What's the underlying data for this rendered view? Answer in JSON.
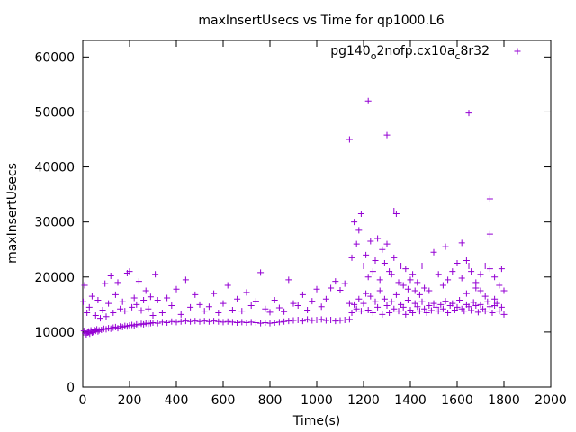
{
  "chart_data": {
    "type": "scatter",
    "title": "maxInsertUsecs vs Time for qp1000.L6",
    "xlabel": "Time(s)",
    "ylabel": "maxInsertUsecs",
    "xlim": [
      0,
      2000
    ],
    "ylim": [
      0,
      63000
    ],
    "x_ticks": [
      0,
      200,
      400,
      600,
      800,
      1000,
      1200,
      1400,
      1600,
      1800,
      2000
    ],
    "y_ticks": [
      0,
      10000,
      20000,
      30000,
      40000,
      50000,
      60000
    ],
    "x_tick_labels": [
      "0",
      "200",
      "400",
      "600",
      "800",
      "1000",
      "1200",
      "1400",
      "1600",
      "1800",
      "2000"
    ],
    "y_tick_labels": [
      "0",
      "10000",
      "20000",
      "30000",
      "40000",
      "50000",
      "60000"
    ],
    "grid": false,
    "legend_position": "top-right",
    "marker": "plus",
    "color": "#9400d3",
    "series": [
      {
        "name_parts": [
          "pg140",
          "o",
          "2nofp.cx10a",
          "c",
          "8r32"
        ],
        "points": [
          [
            5,
            10200
          ],
          [
            10,
            9800
          ],
          [
            15,
            9500
          ],
          [
            20,
            9900
          ],
          [
            25,
            10100
          ],
          [
            30,
            9700
          ],
          [
            35,
            10300
          ],
          [
            40,
            9900
          ],
          [
            45,
            10000
          ],
          [
            50,
            10400
          ],
          [
            55,
            10200
          ],
          [
            60,
            10500
          ],
          [
            65,
            10100
          ],
          [
            70,
            10300
          ],
          [
            80,
            10400
          ],
          [
            90,
            10600
          ],
          [
            100,
            10500
          ],
          [
            110,
            10700
          ],
          [
            120,
            10600
          ],
          [
            130,
            10800
          ],
          [
            140,
            10900
          ],
          [
            150,
            10700
          ],
          [
            160,
            11000
          ],
          [
            170,
            10900
          ],
          [
            180,
            11100
          ],
          [
            190,
            11000
          ],
          [
            200,
            11200
          ],
          [
            210,
            11300
          ],
          [
            220,
            11100
          ],
          [
            230,
            11400
          ],
          [
            240,
            11300
          ],
          [
            250,
            11500
          ],
          [
            260,
            11400
          ],
          [
            270,
            11600
          ],
          [
            280,
            11500
          ],
          [
            290,
            11600
          ],
          [
            300,
            11700
          ],
          [
            320,
            11600
          ],
          [
            340,
            11800
          ],
          [
            360,
            11700
          ],
          [
            380,
            11900
          ],
          [
            400,
            11800
          ],
          [
            420,
            11900
          ],
          [
            440,
            12000
          ],
          [
            460,
            11900
          ],
          [
            480,
            12000
          ],
          [
            500,
            11900
          ],
          [
            520,
            12000
          ],
          [
            540,
            11900
          ],
          [
            560,
            12000
          ],
          [
            580,
            11900
          ],
          [
            600,
            11800
          ],
          [
            620,
            11900
          ],
          [
            640,
            11800
          ],
          [
            660,
            11700
          ],
          [
            680,
            11800
          ],
          [
            700,
            11700
          ],
          [
            720,
            11800
          ],
          [
            740,
            11700
          ],
          [
            760,
            11600
          ],
          [
            780,
            11700
          ],
          [
            800,
            11600
          ],
          [
            820,
            11700
          ],
          [
            840,
            11800
          ],
          [
            860,
            11900
          ],
          [
            880,
            12000
          ],
          [
            900,
            12100
          ],
          [
            920,
            12200
          ],
          [
            940,
            12000
          ],
          [
            960,
            12300
          ],
          [
            980,
            12100
          ],
          [
            1000,
            12200
          ],
          [
            1020,
            12300
          ],
          [
            1040,
            12100
          ],
          [
            1060,
            12200
          ],
          [
            1080,
            12000
          ],
          [
            1100,
            12100
          ],
          [
            1120,
            12200
          ],
          [
            1140,
            12300
          ],
          [
            2,
            15500
          ],
          [
            8,
            18500
          ],
          [
            18,
            13500
          ],
          [
            28,
            14500
          ],
          [
            40,
            16500
          ],
          [
            55,
            13000
          ],
          [
            65,
            15800
          ],
          [
            75,
            12500
          ],
          [
            85,
            14000
          ],
          [
            95,
            18800
          ],
          [
            100,
            12800
          ],
          [
            110,
            15200
          ],
          [
            120,
            20200
          ],
          [
            130,
            13500
          ],
          [
            140,
            16800
          ],
          [
            150,
            19000
          ],
          [
            160,
            14200
          ],
          [
            170,
            15500
          ],
          [
            180,
            13800
          ],
          [
            190,
            20700
          ],
          [
            200,
            21000
          ],
          [
            210,
            14500
          ],
          [
            220,
            16200
          ],
          [
            230,
            15000
          ],
          [
            240,
            19200
          ],
          [
            250,
            13900
          ],
          [
            260,
            15800
          ],
          [
            270,
            17500
          ],
          [
            280,
            14200
          ],
          [
            290,
            16400
          ],
          [
            300,
            13000
          ],
          [
            310,
            20500
          ],
          [
            320,
            15800
          ],
          [
            340,
            13500
          ],
          [
            360,
            16200
          ],
          [
            380,
            14800
          ],
          [
            400,
            17800
          ],
          [
            420,
            13200
          ],
          [
            440,
            19500
          ],
          [
            460,
            14500
          ],
          [
            480,
            16800
          ],
          [
            500,
            15000
          ],
          [
            520,
            13800
          ],
          [
            540,
            14600
          ],
          [
            560,
            17000
          ],
          [
            580,
            13500
          ],
          [
            600,
            15200
          ],
          [
            620,
            18500
          ],
          [
            640,
            14000
          ],
          [
            660,
            16000
          ],
          [
            680,
            13800
          ],
          [
            700,
            17200
          ],
          [
            720,
            14800
          ],
          [
            740,
            15600
          ],
          [
            760,
            20800
          ],
          [
            780,
            14200
          ],
          [
            800,
            13600
          ],
          [
            820,
            15800
          ],
          [
            840,
            14400
          ],
          [
            860,
            13700
          ],
          [
            880,
            19500
          ],
          [
            900,
            15200
          ],
          [
            920,
            14800
          ],
          [
            940,
            16800
          ],
          [
            960,
            14000
          ],
          [
            980,
            15600
          ],
          [
            1000,
            17800
          ],
          [
            1020,
            14600
          ],
          [
            1040,
            16000
          ],
          [
            1060,
            18000
          ],
          [
            1080,
            19200
          ],
          [
            1100,
            17600
          ],
          [
            1120,
            18800
          ],
          [
            1140,
            15200
          ],
          [
            1140,
            45000
          ],
          [
            1220,
            52000
          ],
          [
            1300,
            45800
          ],
          [
            1650,
            49800
          ],
          [
            1740,
            34200
          ],
          [
            1740,
            27800
          ],
          [
            1330,
            32000
          ],
          [
            1150,
            23500
          ],
          [
            1160,
            30000
          ],
          [
            1170,
            26000
          ],
          [
            1180,
            28500
          ],
          [
            1190,
            31500
          ],
          [
            1200,
            22000
          ],
          [
            1210,
            24000
          ],
          [
            1220,
            20000
          ],
          [
            1230,
            26500
          ],
          [
            1240,
            21000
          ],
          [
            1250,
            23000
          ],
          [
            1260,
            27000
          ],
          [
            1270,
            19500
          ],
          [
            1280,
            25000
          ],
          [
            1290,
            22500
          ],
          [
            1300,
            26000
          ],
          [
            1310,
            21000
          ],
          [
            1320,
            20500
          ],
          [
            1330,
            23500
          ],
          [
            1340,
            31500
          ],
          [
            1350,
            19000
          ],
          [
            1360,
            22000
          ],
          [
            1370,
            18500
          ],
          [
            1380,
            21500
          ],
          [
            1390,
            17800
          ],
          [
            1400,
            19500
          ],
          [
            1410,
            20500
          ],
          [
            1420,
            17500
          ],
          [
            1430,
            19000
          ],
          [
            1440,
            16800
          ],
          [
            1450,
            22000
          ],
          [
            1460,
            18000
          ],
          [
            1480,
            17500
          ],
          [
            1500,
            24500
          ],
          [
            1520,
            20500
          ],
          [
            1540,
            18500
          ],
          [
            1560,
            19500
          ],
          [
            1580,
            21000
          ],
          [
            1600,
            22500
          ],
          [
            1620,
            19800
          ],
          [
            1640,
            23000
          ],
          [
            1660,
            21000
          ],
          [
            1680,
            19000
          ],
          [
            1700,
            20500
          ],
          [
            1720,
            22000
          ],
          [
            1740,
            21500
          ],
          [
            1760,
            20000
          ],
          [
            1780,
            18500
          ],
          [
            1790,
            21500
          ],
          [
            1800,
            17500
          ],
          [
            1620,
            26200
          ],
          [
            1550,
            25500
          ],
          [
            1650,
            22000
          ],
          [
            1150,
            13500
          ],
          [
            1160,
            15000
          ],
          [
            1170,
            14200
          ],
          [
            1180,
            16000
          ],
          [
            1190,
            13800
          ],
          [
            1200,
            15200
          ],
          [
            1210,
            17000
          ],
          [
            1220,
            14000
          ],
          [
            1230,
            16500
          ],
          [
            1240,
            13500
          ],
          [
            1250,
            15500
          ],
          [
            1260,
            14500
          ],
          [
            1270,
            17500
          ],
          [
            1280,
            13200
          ],
          [
            1290,
            16000
          ],
          [
            1300,
            14800
          ],
          [
            1310,
            13500
          ],
          [
            1320,
            15500
          ],
          [
            1330,
            14200
          ],
          [
            1340,
            16800
          ],
          [
            1350,
            13800
          ],
          [
            1360,
            15000
          ],
          [
            1370,
            14500
          ],
          [
            1380,
            13200
          ],
          [
            1390,
            15800
          ],
          [
            1400,
            14000
          ],
          [
            1410,
            13500
          ],
          [
            1420,
            15200
          ],
          [
            1430,
            14600
          ],
          [
            1440,
            13800
          ],
          [
            1450,
            15500
          ],
          [
            1460,
            14200
          ],
          [
            1470,
            13500
          ],
          [
            1480,
            14800
          ],
          [
            1490,
            13900
          ],
          [
            1500,
            15200
          ],
          [
            1510,
            14500
          ],
          [
            1520,
            13800
          ],
          [
            1530,
            15000
          ],
          [
            1540,
            14200
          ],
          [
            1550,
            15600
          ],
          [
            1560,
            13500
          ],
          [
            1570,
            14800
          ],
          [
            1580,
            15200
          ],
          [
            1590,
            14000
          ],
          [
            1600,
            14500
          ],
          [
            1610,
            15800
          ],
          [
            1620,
            14200
          ],
          [
            1630,
            13800
          ],
          [
            1640,
            15000
          ],
          [
            1650,
            14600
          ],
          [
            1660,
            13900
          ],
          [
            1670,
            15400
          ],
          [
            1680,
            14800
          ],
          [
            1690,
            13600
          ],
          [
            1700,
            15000
          ],
          [
            1710,
            14200
          ],
          [
            1720,
            13800
          ],
          [
            1730,
            15500
          ],
          [
            1740,
            14600
          ],
          [
            1750,
            13500
          ],
          [
            1760,
            14800
          ],
          [
            1770,
            15200
          ],
          [
            1780,
            13800
          ],
          [
            1790,
            14500
          ],
          [
            1800,
            13200
          ],
          [
            1700,
            17500
          ],
          [
            1720,
            16500
          ],
          [
            1760,
            16000
          ],
          [
            1680,
            18000
          ],
          [
            1640,
            17000
          ]
        ]
      }
    ]
  }
}
